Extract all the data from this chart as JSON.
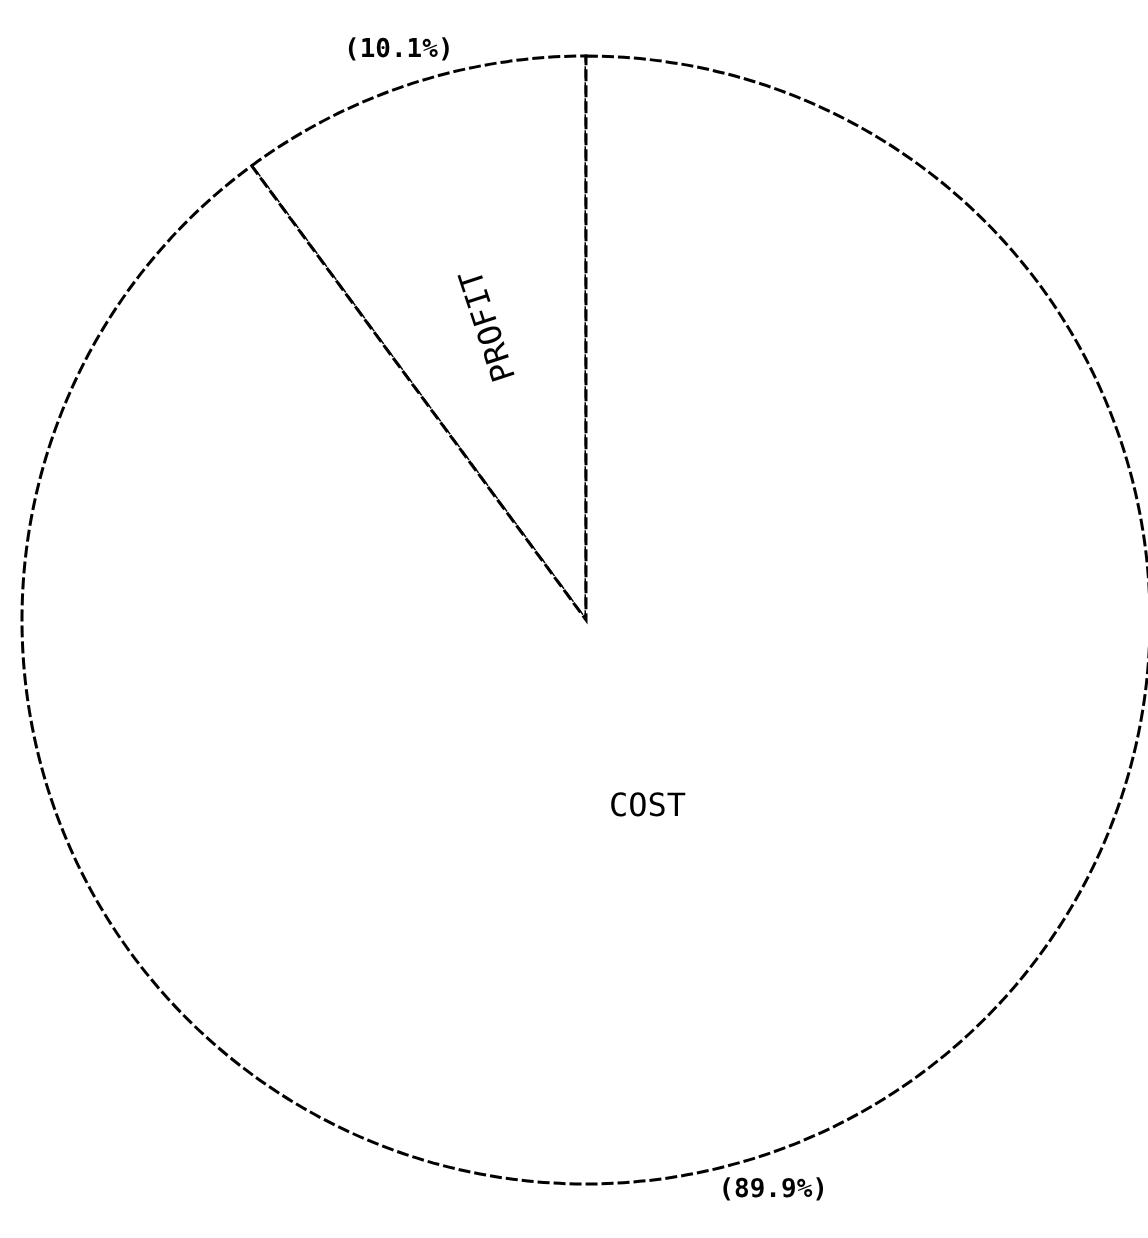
{
  "chart_data": {
    "type": "pie",
    "categories": [
      "PROFIT",
      "COST"
    ],
    "values": [
      10.1,
      89.9
    ],
    "colors": [
      "#ffffff",
      "#ffffff"
    ],
    "value_labels": [
      "(10.1%)",
      "(89.9%)"
    ]
  }
}
